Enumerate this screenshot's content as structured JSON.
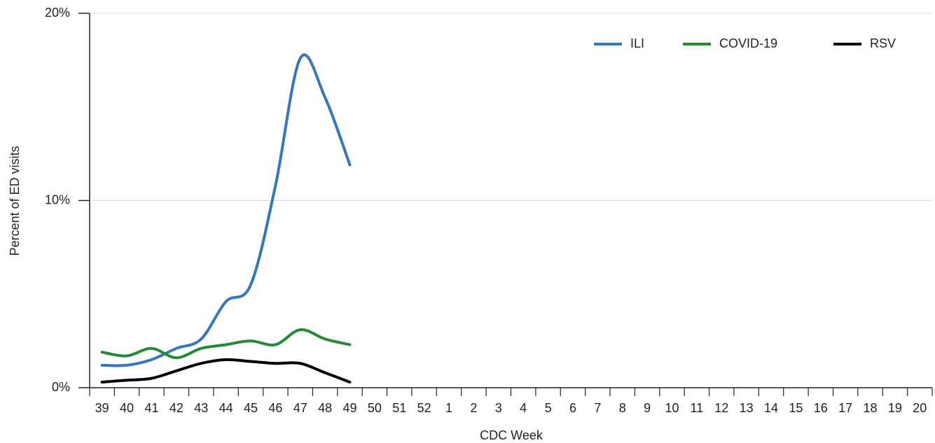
{
  "chart_data": {
    "type": "line",
    "y_label": "Percent of ED visits",
    "x_label": "CDC Week",
    "categories": [
      "39",
      "40",
      "41",
      "42",
      "43",
      "44",
      "45",
      "46",
      "47",
      "48",
      "49",
      "50",
      "51",
      "52",
      "1",
      "2",
      "3",
      "4",
      "5",
      "6",
      "7",
      "8",
      "9",
      "10",
      "11",
      "12",
      "13",
      "14",
      "15",
      "16",
      "17",
      "18",
      "19",
      "20"
    ],
    "series": [
      {
        "name": "ILI",
        "color": "#3577bd",
        "values": [
          1.2,
          1.2,
          1.5,
          2.1,
          2.6,
          4.6,
          5.5,
          10.8,
          17.6,
          15.5,
          11.9,
          null,
          null,
          null,
          null,
          null,
          null,
          null,
          null,
          null,
          null,
          null,
          null,
          null,
          null,
          null,
          null,
          null,
          null,
          null,
          null,
          null,
          null,
          null
        ]
      },
      {
        "name": "COVID-19",
        "color": "#238a35",
        "values": [
          1.9,
          1.7,
          2.1,
          1.6,
          2.1,
          2.3,
          2.5,
          2.3,
          3.1,
          2.6,
          2.3,
          null,
          null,
          null,
          null,
          null,
          null,
          null,
          null,
          null,
          null,
          null,
          null,
          null,
          null,
          null,
          null,
          null,
          null,
          null,
          null,
          null,
          null,
          null
        ]
      },
      {
        "name": "RSV",
        "color": "#000000",
        "values": [
          0.3,
          0.4,
          0.5,
          0.9,
          1.3,
          1.5,
          1.4,
          1.3,
          1.3,
          0.8,
          0.3,
          null,
          null,
          null,
          null,
          null,
          null,
          null,
          null,
          null,
          null,
          null,
          null,
          null,
          null,
          null,
          null,
          null,
          null,
          null,
          null,
          null,
          null,
          null
        ]
      }
    ],
    "ylim": [
      0,
      20
    ],
    "yticks": [
      {
        "value": 0,
        "label": "0%"
      },
      {
        "value": 10,
        "label": "10%"
      },
      {
        "value": 20,
        "label": "20%"
      }
    ],
    "grid": true,
    "legend": "top-right"
  }
}
